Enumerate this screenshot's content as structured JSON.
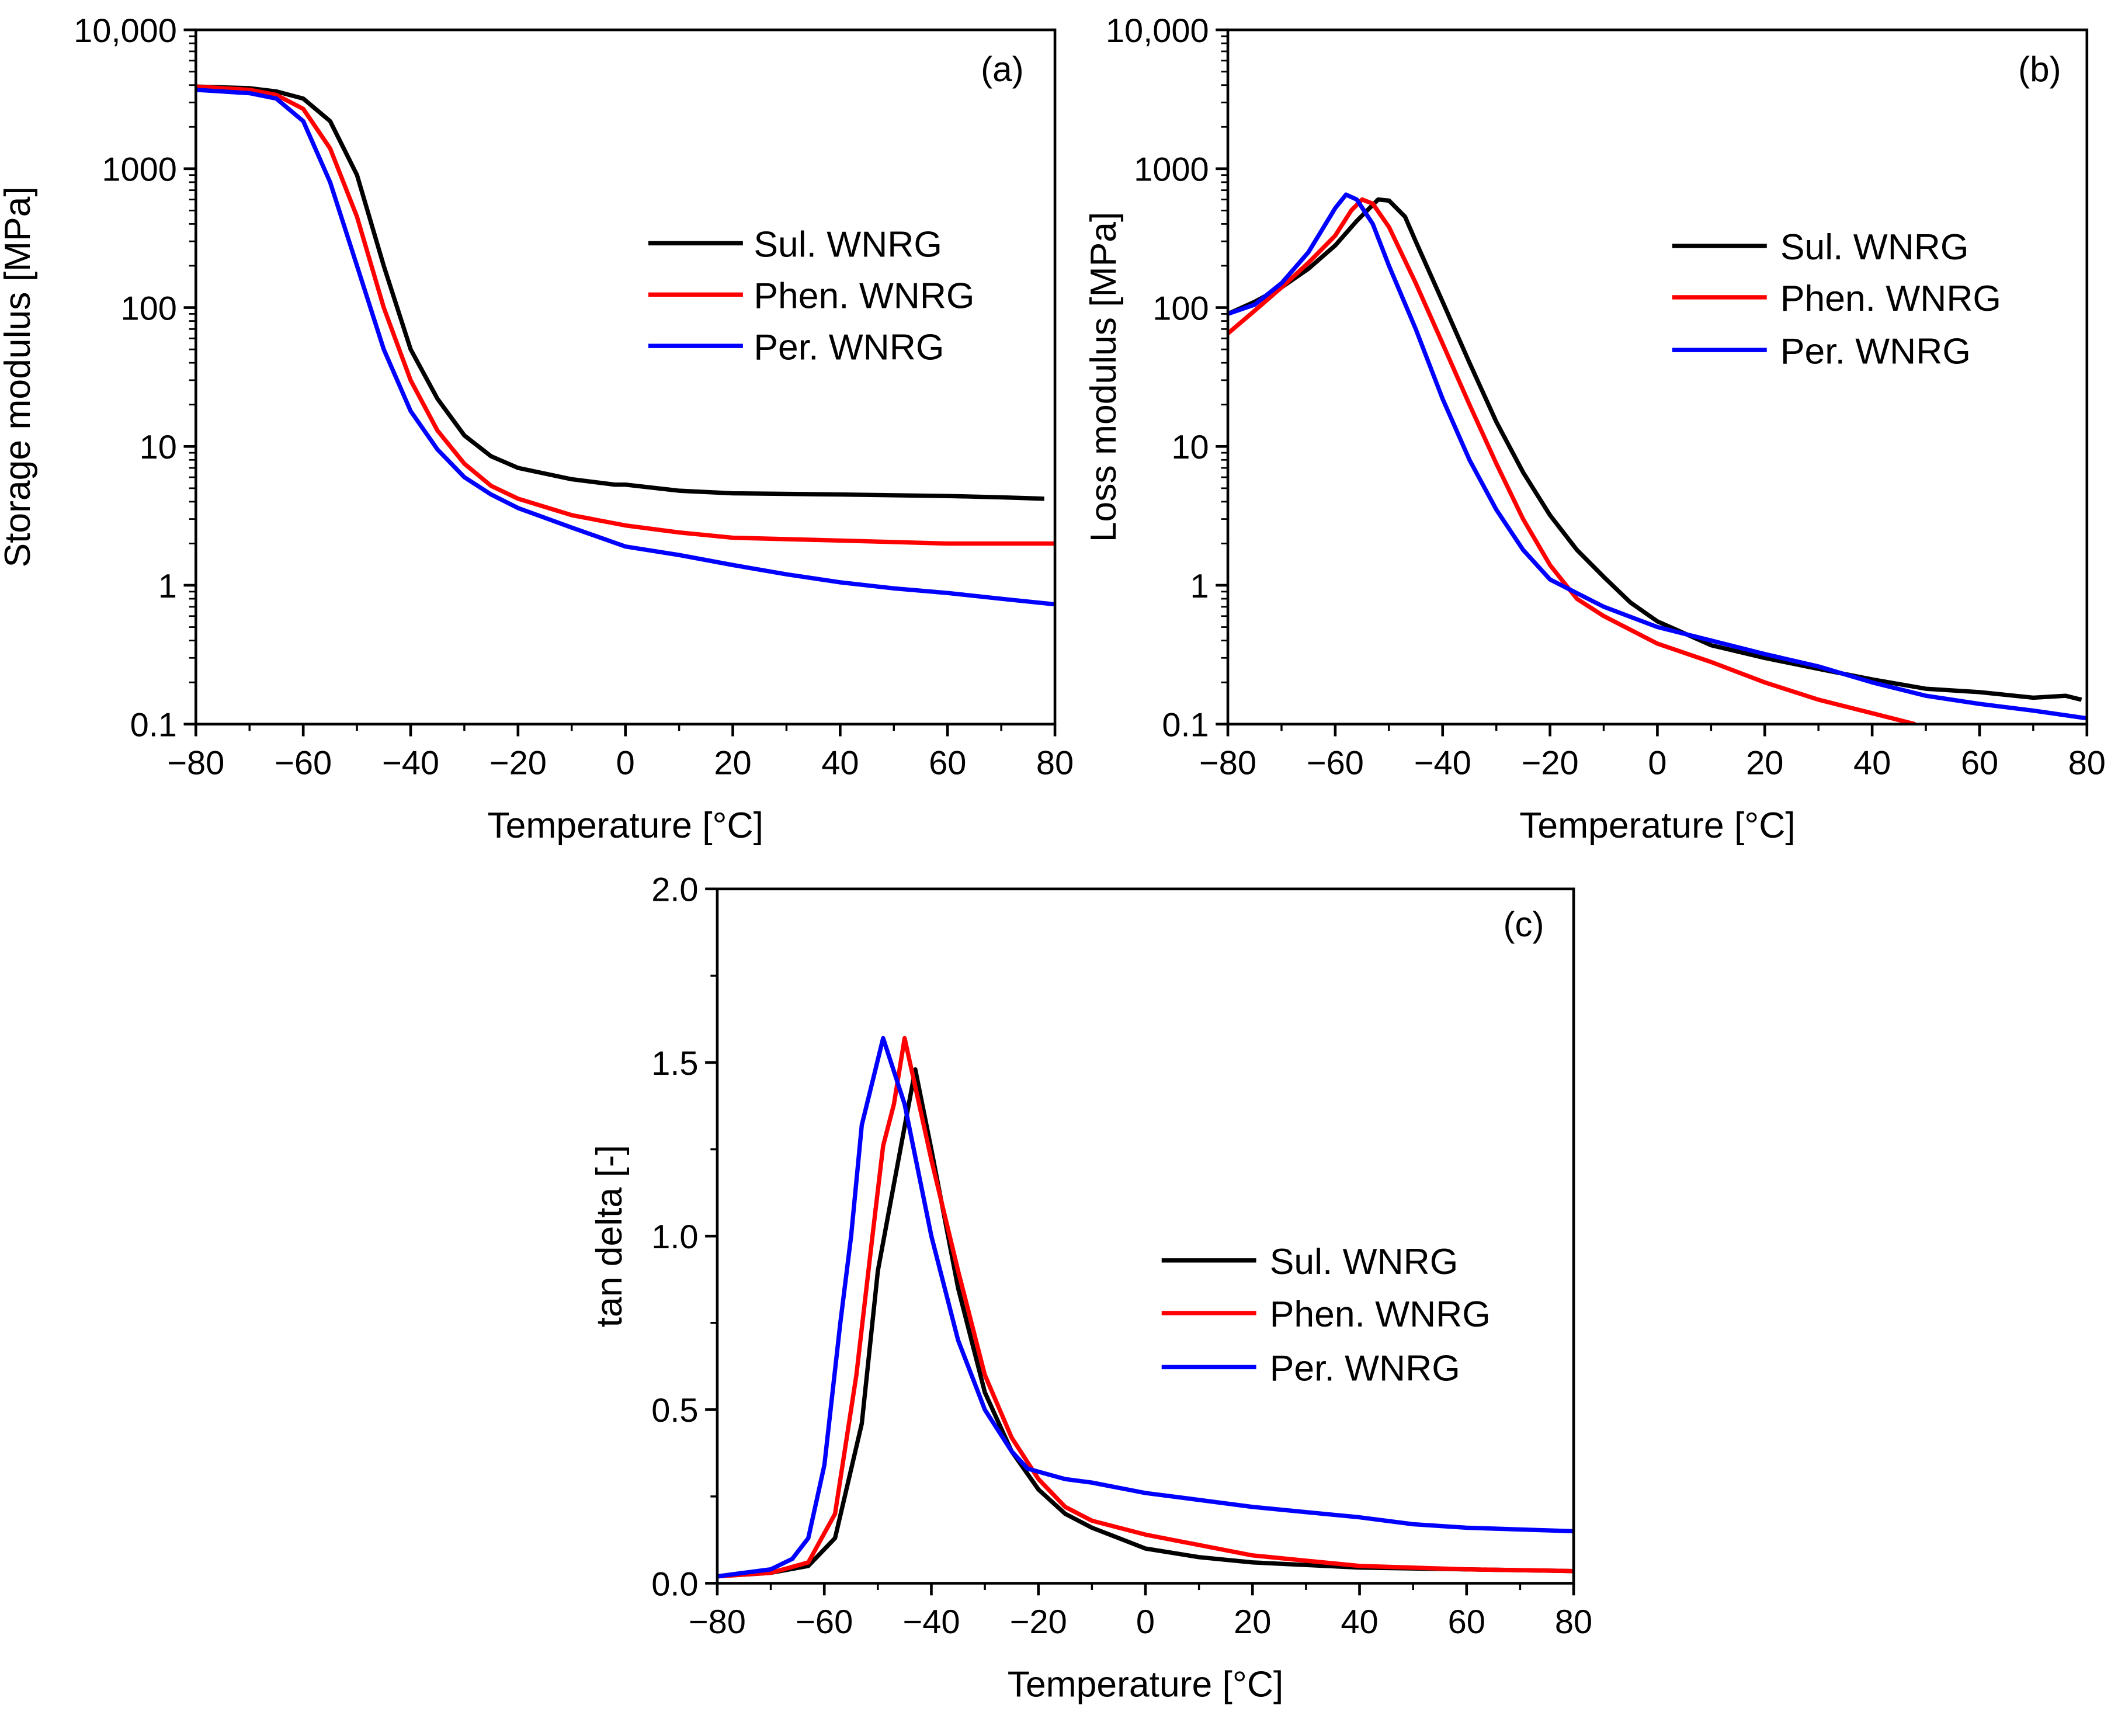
{
  "chart_data": [
    {
      "type": "line",
      "panel_label": "(a)",
      "xlabel": "Temperature [°C]",
      "ylabel": "Storage modulus [MPa]",
      "xlim": [
        -80,
        80
      ],
      "ylim": [
        0.1,
        10000
      ],
      "yscale": "log",
      "xticks": [
        -80,
        -60,
        -40,
        -20,
        0,
        20,
        40,
        60,
        80
      ],
      "xtick_labels": [
        "−80",
        "−60",
        "−40",
        "−20",
        "0",
        "20",
        "40",
        "60",
        "80"
      ],
      "yticks": [
        10000,
        1000,
        100,
        10,
        1,
        0.1
      ],
      "ytick_labels": [
        "10,000",
        "1000",
        "100",
        "10",
        "1",
        "0.1"
      ],
      "legend_position": "center-right",
      "grid": false,
      "series": [
        {
          "name": "Sul. WNRG",
          "color": "#000000",
          "x": [
            -80,
            -70,
            -65,
            -60,
            -55,
            -50,
            -45,
            -40,
            -35,
            -30,
            -25,
            -20,
            -10,
            -2,
            0,
            10,
            20,
            40,
            60,
            70,
            78
          ],
          "y": [
            3900,
            3800,
            3600,
            3200,
            2200,
            900,
            200,
            50,
            22,
            12,
            8.5,
            7,
            5.8,
            5.3,
            5.3,
            4.8,
            4.6,
            4.5,
            4.4,
            4.3,
            4.2
          ]
        },
        {
          "name": "Phen. WNRG",
          "color": "#ff0000",
          "x": [
            -80,
            -70,
            -65,
            -60,
            -55,
            -50,
            -45,
            -40,
            -35,
            -30,
            -25,
            -20,
            -10,
            0,
            10,
            20,
            40,
            60,
            80
          ],
          "y": [
            3900,
            3700,
            3400,
            2700,
            1400,
            450,
            100,
            30,
            13,
            7.5,
            5.2,
            4.2,
            3.2,
            2.7,
            2.4,
            2.2,
            2.1,
            2.0,
            2.0
          ]
        },
        {
          "name": "Per. WNRG",
          "color": "#0000ff",
          "x": [
            -80,
            -70,
            -65,
            -60,
            -55,
            -50,
            -45,
            -40,
            -35,
            -30,
            -25,
            -20,
            -10,
            0,
            10,
            20,
            30,
            40,
            50,
            60,
            70,
            80
          ],
          "y": [
            3700,
            3500,
            3200,
            2200,
            800,
            200,
            50,
            18,
            9.5,
            6,
            4.5,
            3.6,
            2.6,
            1.9,
            1.65,
            1.4,
            1.2,
            1.05,
            0.95,
            0.88,
            0.8,
            0.73
          ]
        }
      ]
    },
    {
      "type": "line",
      "panel_label": "(b)",
      "xlabel": "Temperature [°C]",
      "ylabel": "Loss modulus [MPa]",
      "xlim": [
        -80,
        80
      ],
      "ylim": [
        0.1,
        10000
      ],
      "yscale": "log",
      "xticks": [
        -80,
        -60,
        -40,
        -20,
        0,
        20,
        40,
        60,
        80
      ],
      "xtick_labels": [
        "−80",
        "−60",
        "−40",
        "−20",
        "0",
        "20",
        "40",
        "60",
        "80"
      ],
      "yticks": [
        10000,
        1000,
        100,
        10,
        1,
        0.1
      ],
      "ytick_labels": [
        "10,000",
        "1000",
        "100",
        "10",
        "1",
        "0.1"
      ],
      "legend_position": "center-right",
      "grid": false,
      "series": [
        {
          "name": "Sul. WNRG",
          "color": "#000000",
          "x": [
            -80,
            -75,
            -70,
            -65,
            -60,
            -56,
            -52,
            -50,
            -47,
            -45,
            -40,
            -35,
            -30,
            -25,
            -20,
            -15,
            -10,
            -5,
            0,
            10,
            20,
            30,
            40,
            50,
            60,
            70,
            76,
            79
          ],
          "y": [
            90,
            110,
            140,
            190,
            280,
            420,
            600,
            590,
            450,
            300,
            110,
            40,
            15,
            6.5,
            3.2,
            1.8,
            1.15,
            0.75,
            0.55,
            0.37,
            0.3,
            0.25,
            0.21,
            0.18,
            0.17,
            0.155,
            0.16,
            0.15
          ]
        },
        {
          "name": "Phen. WNRG",
          "color": "#ff0000",
          "x": [
            -80,
            -75,
            -70,
            -65,
            -60,
            -57,
            -55,
            -53,
            -50,
            -45,
            -40,
            -35,
            -30,
            -25,
            -20,
            -15,
            -10,
            0,
            10,
            20,
            30,
            40,
            48
          ],
          "y": [
            65,
            95,
            140,
            210,
            330,
            500,
            600,
            560,
            380,
            150,
            55,
            20,
            7.5,
            3,
            1.4,
            0.8,
            0.6,
            0.38,
            0.28,
            0.2,
            0.15,
            0.12,
            0.1
          ]
        },
        {
          "name": "Per. WNRG",
          "color": "#0000ff",
          "x": [
            -80,
            -75,
            -70,
            -65,
            -60,
            -58,
            -56,
            -53,
            -50,
            -45,
            -40,
            -35,
            -30,
            -25,
            -20,
            -10,
            0,
            10,
            20,
            30,
            40,
            50,
            60,
            70,
            80
          ],
          "y": [
            90,
            105,
            150,
            250,
            520,
            650,
            600,
            400,
            200,
            70,
            22,
            8,
            3.5,
            1.8,
            1.1,
            0.7,
            0.5,
            0.4,
            0.32,
            0.26,
            0.2,
            0.16,
            0.14,
            0.125,
            0.11
          ]
        }
      ]
    },
    {
      "type": "line",
      "panel_label": "(c)",
      "xlabel": "Temperature [°C]",
      "ylabel": "tan delta [-]",
      "xlim": [
        -80,
        80
      ],
      "ylim": [
        0,
        2.0
      ],
      "yscale": "linear",
      "xticks": [
        -80,
        -60,
        -40,
        -20,
        0,
        20,
        40,
        60,
        80
      ],
      "xtick_labels": [
        "−80",
        "−60",
        "−40",
        "−20",
        "0",
        "20",
        "40",
        "60",
        "80"
      ],
      "yticks": [
        0,
        0.5,
        1.0,
        1.5,
        2.0
      ],
      "ytick_labels": [
        "0.0",
        "0.5",
        "1.0",
        "1.5",
        "2.0"
      ],
      "legend_position": "center-right",
      "grid": false,
      "series": [
        {
          "name": "Sul. WNRG",
          "color": "#000000",
          "x": [
            -80,
            -70,
            -63,
            -58,
            -53,
            -50,
            -47,
            -43,
            -40,
            -35,
            -30,
            -25,
            -20,
            -15,
            -10,
            -5,
            0,
            10,
            20,
            40,
            60,
            80
          ],
          "y": [
            0.02,
            0.03,
            0.05,
            0.13,
            0.46,
            0.9,
            1.15,
            1.48,
            1.25,
            0.85,
            0.55,
            0.38,
            0.27,
            0.2,
            0.16,
            0.13,
            0.1,
            0.075,
            0.06,
            0.045,
            0.04,
            0.035
          ]
        },
        {
          "name": "Phen. WNRG",
          "color": "#ff0000",
          "x": [
            -80,
            -70,
            -63,
            -58,
            -54,
            -51,
            -49,
            -47,
            -45,
            -40,
            -35,
            -30,
            -25,
            -20,
            -15,
            -10,
            0,
            10,
            20,
            40,
            60,
            80
          ],
          "y": [
            0.02,
            0.03,
            0.06,
            0.2,
            0.6,
            1.0,
            1.26,
            1.38,
            1.57,
            1.22,
            0.9,
            0.6,
            0.42,
            0.3,
            0.22,
            0.18,
            0.14,
            0.11,
            0.08,
            0.05,
            0.04,
            0.035
          ]
        },
        {
          "name": "Per. WNRG",
          "color": "#0000ff",
          "x": [
            -80,
            -70,
            -66,
            -63,
            -60,
            -57,
            -55,
            -53,
            -49,
            -45,
            -40,
            -35,
            -30,
            -25,
            -22,
            -15,
            -10,
            0,
            10,
            20,
            40,
            50,
            60,
            70,
            80
          ],
          "y": [
            0.02,
            0.04,
            0.07,
            0.13,
            0.34,
            0.75,
            1.0,
            1.32,
            1.57,
            1.38,
            1.0,
            0.7,
            0.5,
            0.38,
            0.33,
            0.3,
            0.29,
            0.26,
            0.24,
            0.22,
            0.19,
            0.17,
            0.16,
            0.155,
            0.15
          ]
        }
      ]
    }
  ]
}
